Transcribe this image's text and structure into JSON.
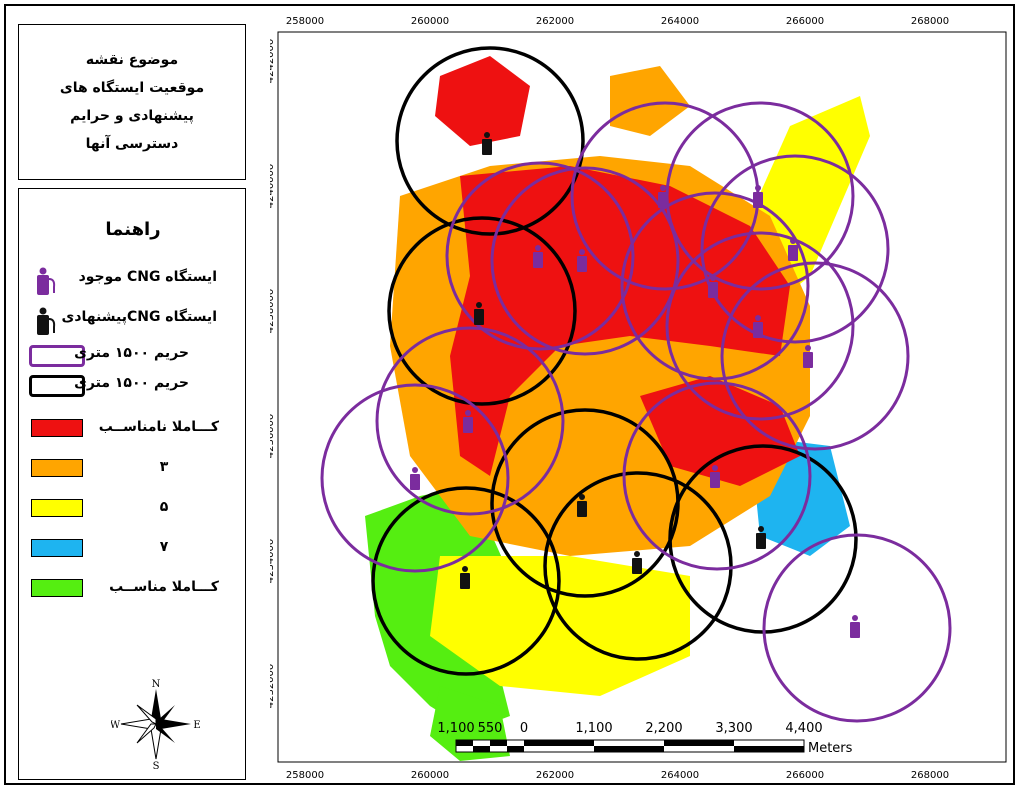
{
  "title_box": {
    "line1": "موضوع نقشه",
    "line2": "موقعیت ایستگاه های",
    "line3": "پیشنهادی و حرایم",
    "line4": "دسترسی آنها"
  },
  "legend": {
    "heading": "راهنما",
    "items": [
      {
        "label": "ایستگاه CNG موجود",
        "kind": "pump-icon",
        "color": "#7B2C9E"
      },
      {
        "label": "ایستگاه CNGپیشنهادی",
        "kind": "pump-icon",
        "color": "#111111"
      },
      {
        "label": "حریم ۱۵۰۰ متری",
        "kind": "ring",
        "color": "#7B2C9E"
      },
      {
        "label": "حریم ۱۵۰۰ متری",
        "kind": "ring",
        "color": "#000000"
      },
      {
        "label": "کـــاملا نامناســب",
        "kind": "swatch",
        "color": "#EE1111"
      },
      {
        "label": "۳",
        "kind": "swatch",
        "color": "#FFA500"
      },
      {
        "label": "۵",
        "kind": "swatch",
        "color": "#FFFF00"
      },
      {
        "label": "۷",
        "kind": "swatch",
        "color": "#1EB4F0"
      },
      {
        "label": "کـــاملا مناســب",
        "kind": "swatch",
        "color": "#55EE11"
      }
    ]
  },
  "north_arrow": {
    "n": "N",
    "s": "S",
    "e": "E",
    "w": "W"
  },
  "axes": {
    "x_labels": [
      "258000",
      "260000",
      "262000",
      "264000",
      "266000",
      "268000"
    ],
    "y_labels": [
      "4242000",
      "4240000",
      "4238000",
      "4236000",
      "4234000",
      "4232000"
    ]
  },
  "scale_bar": {
    "labels": [
      "1,100",
      "550",
      "0",
      "1,100",
      "2,200",
      "3,300",
      "4,400"
    ],
    "unit": "Meters"
  },
  "colors": {
    "existing": "#7B2C9E",
    "proposed": "#000000",
    "class1": "#EE1111",
    "class3": "#FFA500",
    "class5": "#FFFF00",
    "class7": "#1EB4F0",
    "class9": "#55EE11"
  }
}
